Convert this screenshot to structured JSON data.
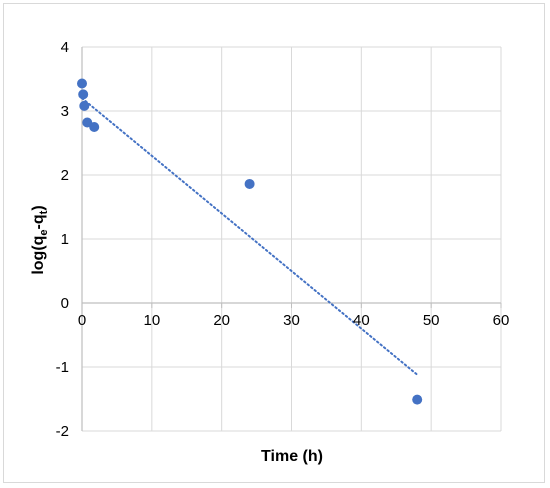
{
  "chart_data": {
    "type": "scatter",
    "title": "",
    "xlabel": "Time (h)",
    "ylabel_main": "log(q",
    "ylabel_sub1": "e",
    "ylabel_mid": "-q",
    "ylabel_sub2": "t",
    "ylabel_end": ")",
    "xlim": [
      0,
      60
    ],
    "ylim": [
      -2,
      4
    ],
    "x_ticks": [
      0,
      10,
      20,
      30,
      40,
      50,
      60
    ],
    "x_tick_labels": [
      "0",
      "10",
      "20",
      "30",
      "40",
      "50",
      "60"
    ],
    "y_ticks": [
      4,
      3,
      2,
      1,
      0,
      -1,
      -2
    ],
    "y_tick_labels": [
      "4",
      "3",
      "2",
      "1",
      "0",
      "-1",
      "-2"
    ],
    "grid": true,
    "legend": "none",
    "series": [
      {
        "x": [
          0,
          0.17,
          0.33,
          0.75,
          1.75,
          24,
          48
        ],
        "y": [
          3.43,
          3.26,
          3.08,
          2.82,
          2.75,
          1.86,
          -1.51
        ],
        "color": "#4472c4"
      }
    ],
    "trendline": {
      "type": "linear",
      "style": "dotted",
      "color": "#4472c4",
      "x": [
        0,
        48
      ],
      "y": [
        3.2,
        -1.12
      ]
    }
  }
}
